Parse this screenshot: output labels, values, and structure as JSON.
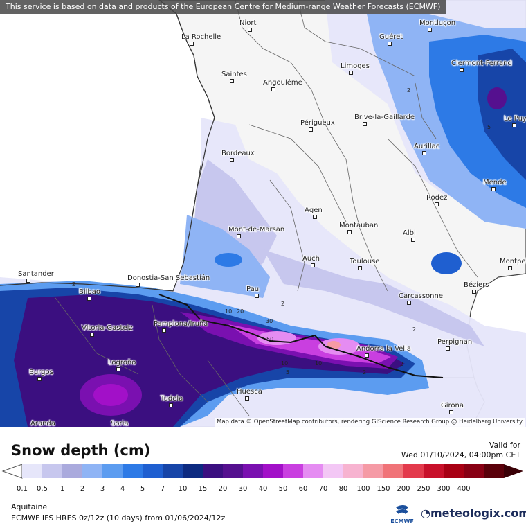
{
  "banner": "This service is based on data and products of the European Centre for Medium-range Weather Forecasts (ECMWF)",
  "attribution": "Map data © OpenStreetMap contributors, rendering GIScience Research Group @ Heidelberg University",
  "title": "Snow depth (cm)",
  "valid_label": "Valid for",
  "valid_time": "Wed 01/10/2024, 04:00pm CET",
  "region": "Aquitaine",
  "model_run": "ECMWF IFS HRES 0z/12z (10 days) from 01/06/2024/12z",
  "ecmwf_logo": "ECMWF",
  "brand": "meteologix.com",
  "legend": {
    "labels": [
      "0.1",
      "0.5",
      "1",
      "2",
      "3",
      "4",
      "5",
      "7",
      "10",
      "15",
      "20",
      "30",
      "40",
      "50",
      "60",
      "70",
      "80",
      "100",
      "150",
      "200",
      "250",
      "300",
      "400"
    ],
    "colors": [
      "#e6e6fa",
      "#c7c7ee",
      "#aaaadd",
      "#8fb4f5",
      "#5c9cf0",
      "#2d7ae6",
      "#1f5fd0",
      "#1745a8",
      "#0d2a80",
      "#3b0f80",
      "#55108f",
      "#7a10b0",
      "#a210c8",
      "#c93fe0",
      "#e58cf2",
      "#f3c7f5",
      "#f7b3d0",
      "#f59aa5",
      "#f07378",
      "#e33a4c",
      "#c8102a",
      "#a80014",
      "#880014",
      "#5a000a"
    ]
  },
  "contour_labels": [
    "2",
    "2",
    "2",
    "2",
    "5",
    "5",
    "10",
    "10",
    "10",
    "20",
    "30",
    "50",
    "2",
    "2"
  ],
  "cities": [
    {
      "name": "Niort"
    },
    {
      "name": "La Rochelle"
    },
    {
      "name": "Guéret"
    },
    {
      "name": "Montluçon"
    },
    {
      "name": "Saintes"
    },
    {
      "name": "Angoulême"
    },
    {
      "name": "Limoges"
    },
    {
      "name": "Clermont-Ferrand"
    },
    {
      "name": "Périgueux"
    },
    {
      "name": "Brive-la-Gaillarde"
    },
    {
      "name": "Le Puy-en-Velay"
    },
    {
      "name": "Bordeaux"
    },
    {
      "name": "Aurillac"
    },
    {
      "name": "Mende"
    },
    {
      "name": "Agen"
    },
    {
      "name": "Rodez"
    },
    {
      "name": "Mont-de-Marsan"
    },
    {
      "name": "Montauban"
    },
    {
      "name": "Albi"
    },
    {
      "name": "Auch"
    },
    {
      "name": "Toulouse"
    },
    {
      "name": "Montpellier"
    },
    {
      "name": "Santander"
    },
    {
      "name": "Donostia-San Sebastián"
    },
    {
      "name": "Bilbao"
    },
    {
      "name": "Pau"
    },
    {
      "name": "Béziers"
    },
    {
      "name": "Carcassonne"
    },
    {
      "name": "Vitoria-Gasteiz"
    },
    {
      "name": "Pamplona/Iruña"
    },
    {
      "name": "Perpignan"
    },
    {
      "name": "Andorra la Vella"
    },
    {
      "name": "Logroño"
    },
    {
      "name": "Burgos"
    },
    {
      "name": "Huesca"
    },
    {
      "name": "Tudela"
    },
    {
      "name": "Girona"
    },
    {
      "name": "Aranda"
    },
    {
      "name": "Soria"
    }
  ]
}
